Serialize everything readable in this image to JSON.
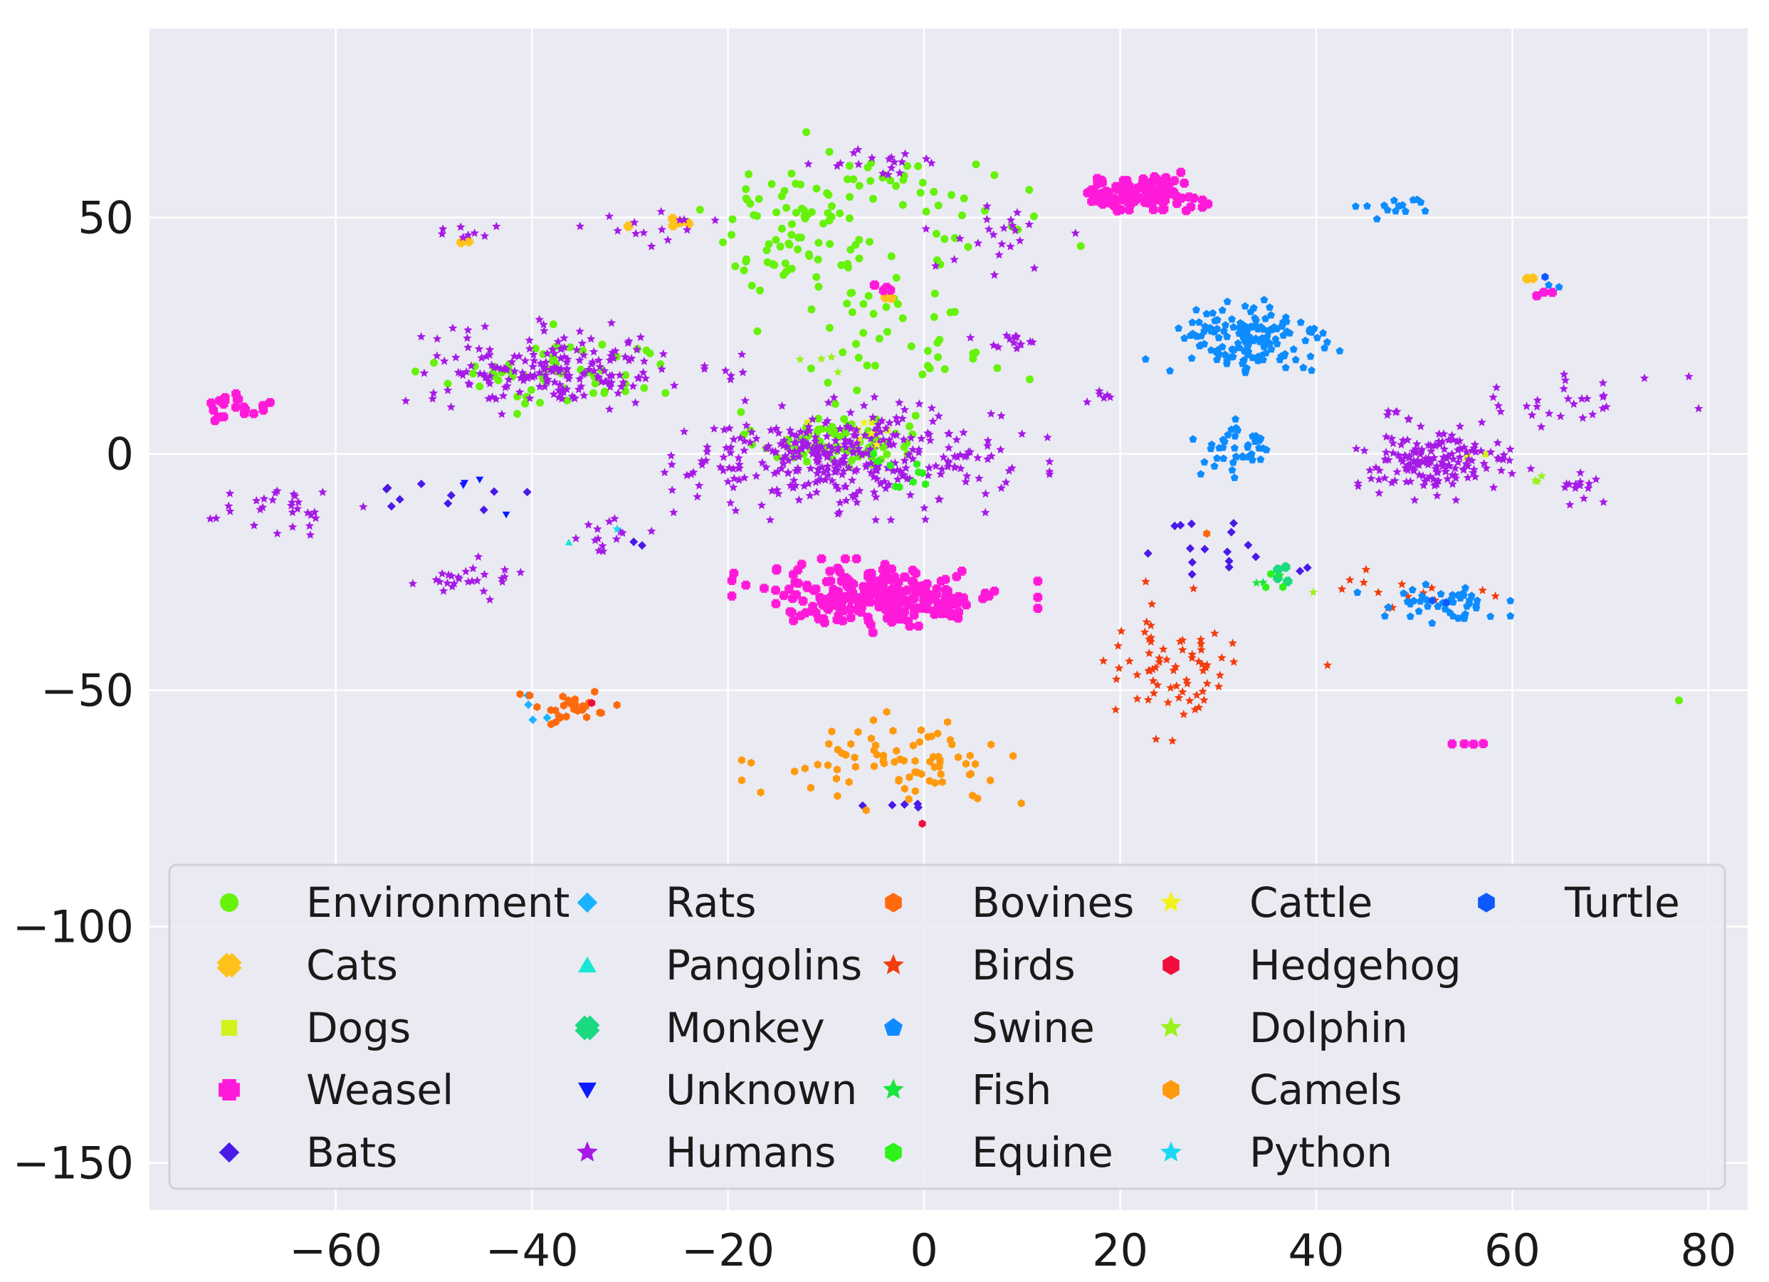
{
  "chart_data": {
    "type": "scatter",
    "title": "",
    "xlabel": "",
    "ylabel": "",
    "xlim": [
      -79,
      84
    ],
    "ylim": [
      -160,
      90
    ],
    "grid": true,
    "xticks": [
      -60,
      -40,
      -20,
      0,
      20,
      40,
      60,
      80
    ],
    "xtick_labels": [
      "−60",
      "−40",
      "−20",
      "0",
      "20",
      "40",
      "60",
      "80"
    ],
    "yticks": [
      50,
      0,
      -50,
      -100,
      -150
    ],
    "ytick_labels": [
      "50",
      "0",
      "−50",
      "−100",
      "−150"
    ],
    "legend_position": "lower-center",
    "series": [
      {
        "name": "Environment",
        "color": "#66f20a",
        "marker": "circle",
        "clusters": [
          [
            -9,
            3,
            4,
            3,
            80
          ],
          [
            -12,
            50,
            5,
            7,
            70
          ],
          [
            -4,
            28,
            5,
            5,
            25
          ],
          [
            -37,
            17,
            6,
            4,
            60
          ],
          [
            2,
            18,
            6,
            2,
            15
          ],
          [
            -14,
            42,
            4,
            5,
            20
          ],
          [
            5,
            48,
            5,
            4,
            18
          ],
          [
            -3,
            58,
            4,
            3,
            18
          ],
          [
            77,
            -52,
            0.3,
            0.3,
            1
          ]
        ]
      },
      {
        "name": "Cats",
        "color": "#ffc21a",
        "marker": "x",
        "clusters": [
          [
            -25,
            49,
            2,
            1,
            5
          ],
          [
            -47,
            45,
            0.5,
            0.5,
            2
          ],
          [
            -4,
            33,
            0.5,
            0.5,
            2
          ],
          [
            62,
            37,
            0.5,
            0.5,
            2
          ]
        ]
      },
      {
        "name": "Dogs",
        "color": "#d3f21a",
        "marker": "square",
        "clusters": [
          [
            -7,
            5,
            2,
            2,
            5
          ],
          [
            56,
            0,
            1,
            1,
            3
          ]
        ]
      },
      {
        "name": "Weasel",
        "color": "#ff1ad9",
        "marker": "plus",
        "clusters": [
          [
            -4,
            -30,
            6,
            3,
            260
          ],
          [
            22,
            55,
            3,
            1.8,
            110
          ],
          [
            -70,
            10,
            1.5,
            1.2,
            20
          ],
          [
            -4,
            35,
            0.8,
            0.8,
            5
          ],
          [
            56,
            -61,
            1.2,
            0.6,
            4
          ],
          [
            62,
            34,
            0.8,
            0.6,
            3
          ]
        ]
      },
      {
        "name": "Bats",
        "color": "#4a1ae6",
        "marker": "diamond",
        "clusters": [
          [
            -47,
            -8,
            4,
            3,
            10
          ],
          [
            29,
            -20,
            3,
            3,
            15
          ],
          [
            -3,
            -74,
            3,
            0.8,
            5
          ],
          [
            -29,
            -19,
            0.5,
            0.5,
            2
          ],
          [
            39,
            -24,
            0.6,
            0.6,
            2
          ]
        ]
      },
      {
        "name": "Rats",
        "color": "#1ab3ff",
        "marker": "diamond",
        "clusters": [
          [
            -39,
            -53,
            1.5,
            2.5,
            5
          ]
        ]
      },
      {
        "name": "Pangolins",
        "color": "#1ae6d6",
        "marker": "triangle",
        "clusters": [
          [
            -36,
            -19,
            0.4,
            0.4,
            1
          ],
          [
            36,
            -24,
            0.5,
            0.5,
            2
          ]
        ]
      },
      {
        "name": "Monkey",
        "color": "#1ad980",
        "marker": "x",
        "clusters": [
          [
            36,
            -26,
            1,
            1,
            4
          ]
        ]
      },
      {
        "name": "Unknown",
        "color": "#0d1aff",
        "marker": "triangle-down",
        "clusters": [
          [
            -45,
            -9,
            2,
            2,
            4
          ]
        ]
      },
      {
        "name": "Humans",
        "color": "#a61ae6",
        "marker": "star",
        "clusters": [
          [
            -8,
            -1,
            8,
            5,
            340
          ],
          [
            -38,
            18,
            6,
            4,
            180
          ],
          [
            52,
            -2,
            4,
            3,
            150
          ],
          [
            66,
            12,
            5,
            3,
            30
          ],
          [
            68,
            -7,
            2,
            1.5,
            14
          ],
          [
            -65,
            -12,
            3,
            2,
            30
          ],
          [
            -48,
            -27,
            3,
            2,
            26
          ],
          [
            9,
            24,
            2,
            1,
            14
          ],
          [
            8,
            45,
            3,
            4,
            22
          ],
          [
            -27,
            48,
            4,
            2,
            14
          ],
          [
            -4,
            62,
            3,
            1.5,
            18
          ],
          [
            -47,
            47,
            1.3,
            0.8,
            8
          ],
          [
            18,
            12,
            1.3,
            0.8,
            6
          ],
          [
            48,
            8,
            1.2,
            0.8,
            6
          ],
          [
            -33,
            -17,
            2,
            2,
            14
          ],
          [
            -20,
            18,
            2,
            2,
            6
          ]
        ]
      },
      {
        "name": "Bovines",
        "color": "#ff6a0d",
        "marker": "hexagon",
        "clusters": [
          [
            -36,
            -54,
            2,
            2,
            28
          ],
          [
            29,
            -17,
            0.5,
            0.5,
            1
          ]
        ]
      },
      {
        "name": "Birds",
        "color": "#f23d0d",
        "marker": "star",
        "clusters": [
          [
            25,
            -45,
            4,
            7,
            70
          ],
          [
            50,
            -30,
            4,
            3,
            14
          ],
          [
            41,
            -45,
            0.5,
            0.5,
            1
          ]
        ]
      },
      {
        "name": "Swine",
        "color": "#0d8cff",
        "marker": "pentagon",
        "clusters": [
          [
            33,
            24,
            4,
            4,
            140
          ],
          [
            32,
            1,
            2,
            3,
            40
          ],
          [
            52,
            -32,
            3,
            2,
            45
          ],
          [
            49,
            52,
            2,
            1,
            14
          ],
          [
            64,
            36,
            0.5,
            0.5,
            2
          ]
        ]
      },
      {
        "name": "Fish",
        "color": "#1ae63d",
        "marker": "star",
        "clusters": [
          [
            36,
            -26,
            1,
            1,
            3
          ]
        ]
      },
      {
        "name": "Equine",
        "color": "#2ef21a",
        "marker": "hexagon",
        "clusters": [
          [
            -3,
            -5,
            3,
            3,
            10
          ],
          [
            36,
            -27,
            1,
            1,
            3
          ]
        ]
      },
      {
        "name": "Cattle",
        "color": "#f2f21a",
        "marker": "star",
        "clusters": [
          [
            -6,
            4,
            2,
            2,
            3
          ]
        ]
      },
      {
        "name": "Hedgehog",
        "color": "#f20d3d",
        "marker": "hexagon",
        "clusters": [
          [
            0,
            -78,
            0.3,
            0.3,
            1
          ],
          [
            -34,
            -52,
            0.5,
            0.5,
            1
          ]
        ]
      },
      {
        "name": "Dolphin",
        "color": "#99f21a",
        "marker": "star",
        "clusters": [
          [
            -11,
            18,
            2,
            2,
            4
          ],
          [
            40,
            -29,
            0.5,
            0.5,
            1
          ],
          [
            62,
            -6,
            1,
            0.5,
            3
          ]
        ]
      },
      {
        "name": "Camels",
        "color": "#ff990d",
        "marker": "hexagon",
        "clusters": [
          [
            -3,
            -65,
            6,
            4,
            80
          ]
        ]
      },
      {
        "name": "Python",
        "color": "#1ad9f2",
        "marker": "star",
        "clusters": [
          [
            -31,
            -16,
            0.5,
            0.5,
            1
          ]
        ]
      },
      {
        "name": "Turtle",
        "color": "#0d59ff",
        "marker": "hexagon",
        "clusters": [
          [
            64,
            37,
            0.5,
            0.5,
            1
          ],
          [
            52,
            -30,
            1,
            1,
            2
          ]
        ]
      }
    ]
  }
}
